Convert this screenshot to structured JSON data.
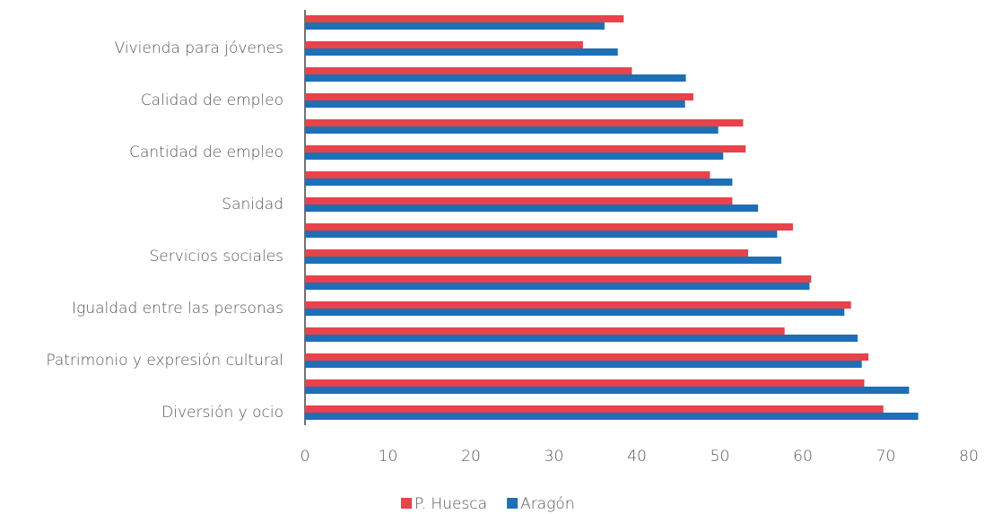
{
  "chart_data": {
    "type": "hbar",
    "categories": [
      null,
      "Vivienda para jóvenes",
      null,
      "Calidad de empleo",
      null,
      "Cantidad de empleo",
      null,
      "Sanidad",
      null,
      "Servicios sociales",
      null,
      "Igualdad entre las personas",
      null,
      "Patrimonio y expresión cultural",
      null,
      "Diversión y ocio"
    ],
    "series": [
      {
        "name": "P. Huesca",
        "color": "#e8424a",
        "values": [
          38.4,
          33.5,
          39.4,
          46.8,
          52.8,
          53.1,
          48.8,
          51.5,
          58.8,
          53.4,
          61.0,
          65.8,
          57.8,
          67.9,
          67.4,
          69.7
        ]
      },
      {
        "name": "Aragón",
        "color": "#1f6fb5",
        "values": [
          36.1,
          37.7,
          45.9,
          45.8,
          49.8,
          50.4,
          51.5,
          54.6,
          56.9,
          57.4,
          60.8,
          65.0,
          66.6,
          67.1,
          72.8,
          73.9
        ]
      }
    ],
    "xlim": [
      0,
      80
    ],
    "xticks": [
      0,
      10,
      20,
      30,
      40,
      50,
      60,
      70,
      80
    ],
    "grid": false,
    "legend": "bottom"
  }
}
